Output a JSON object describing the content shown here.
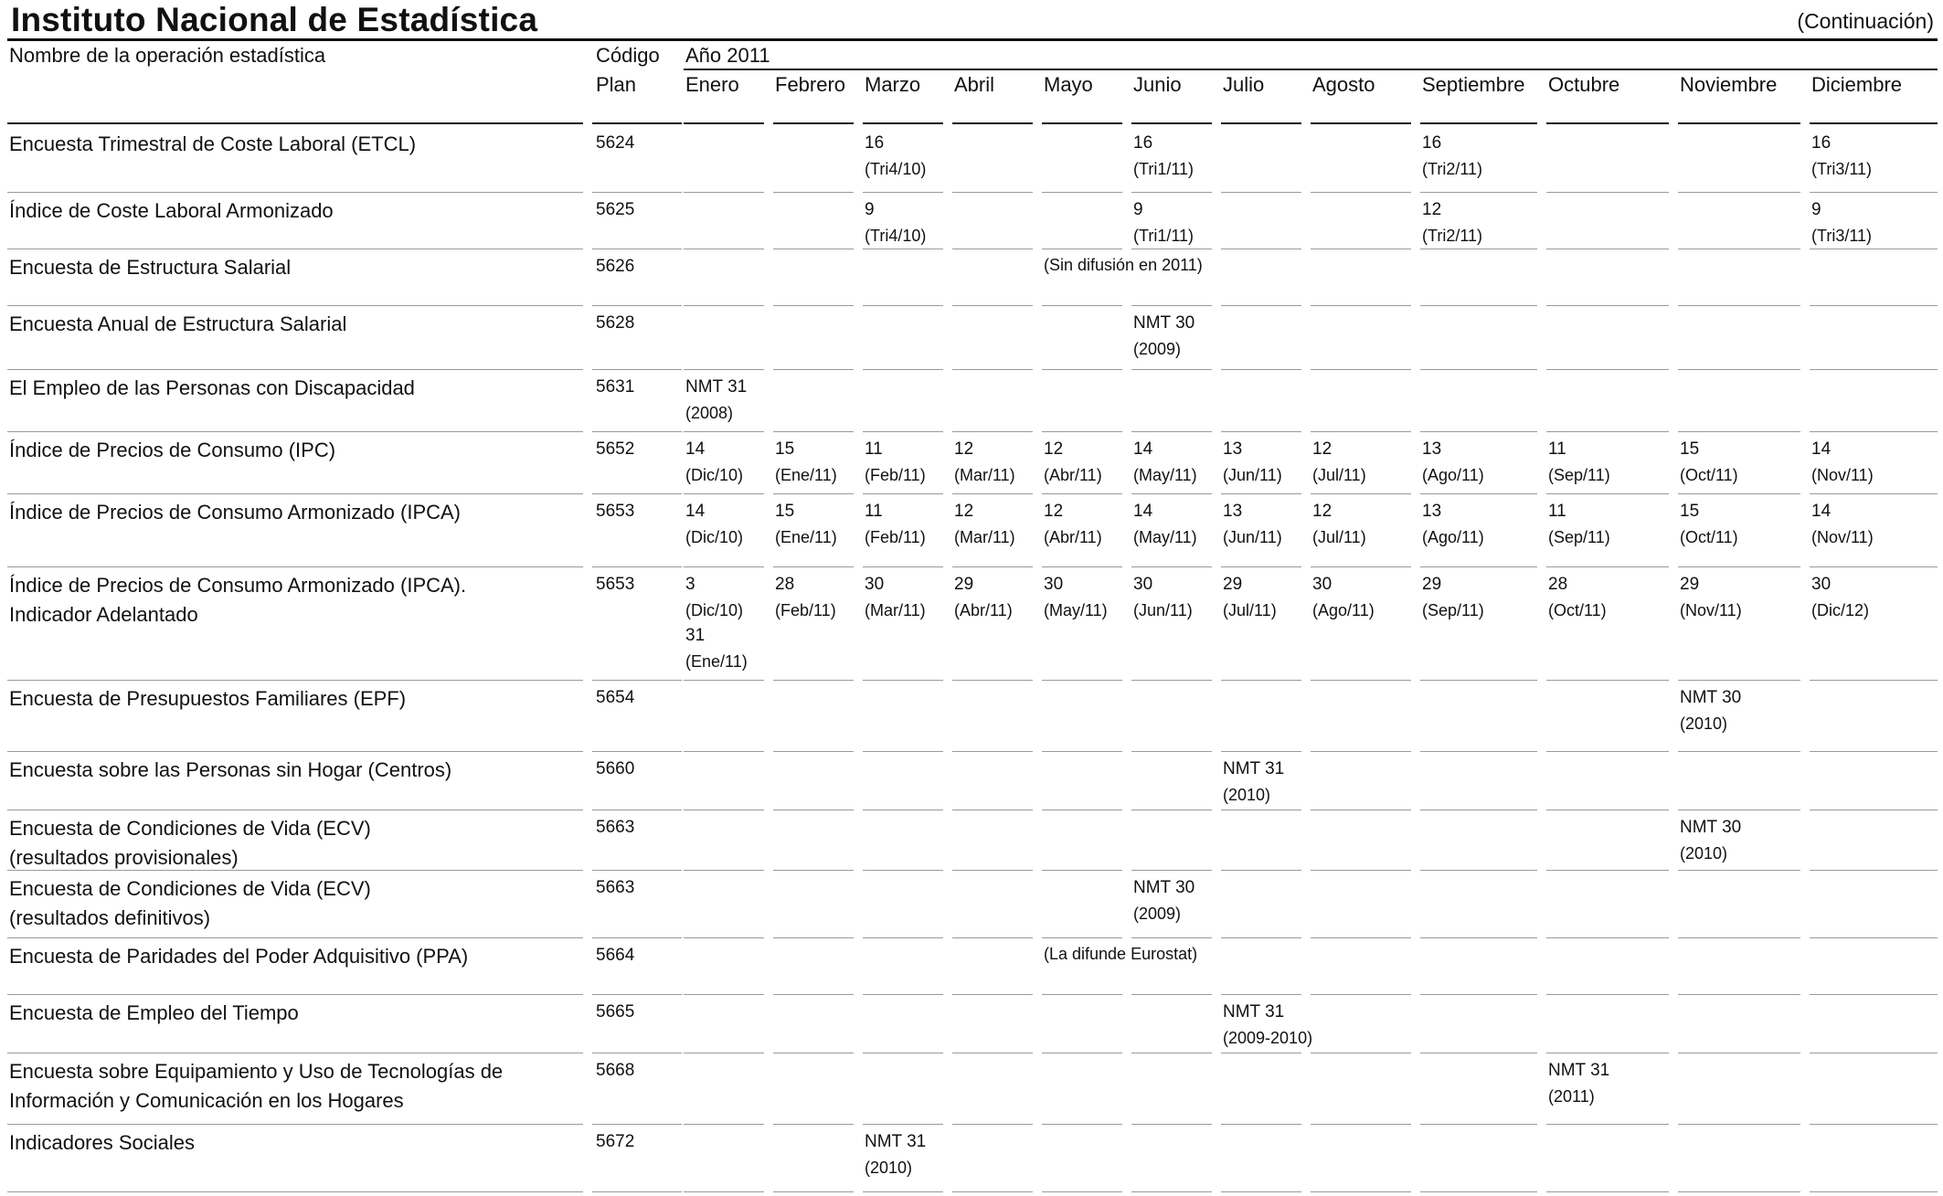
{
  "header": {
    "title": "Instituto Nacional de Estadística",
    "continuation": "(Continuación)"
  },
  "table": {
    "col_name": "Nombre de la operación estadística",
    "col_code_line1": "Código",
    "col_code_line2": "Plan",
    "year_label": "Año 2011",
    "months": [
      "Enero",
      "Febrero",
      "Marzo",
      "Abril",
      "Mayo",
      "Junio",
      "Julio",
      "Agosto",
      "Septiembre",
      "Octubre",
      "Noviembre",
      "Diciembre"
    ],
    "rows": [
      {
        "name": [
          "Encuesta Trimestral de Coste Laboral (ETCL)"
        ],
        "code": "5624",
        "cells": {
          "2": [
            "16",
            "(Tri4/10)"
          ],
          "5": [
            "16",
            "(Tri1/11)"
          ],
          "8": [
            "16",
            "(Tri2/11)"
          ],
          "11": [
            "16",
            "(Tri3/11)"
          ]
        }
      },
      {
        "name": [
          "Índice de Coste Laboral Armonizado"
        ],
        "code": "5625",
        "cells": {
          "2": [
            "9",
            "(Tri4/10)"
          ],
          "5": [
            "9",
            "(Tri1/11)"
          ],
          "8": [
            "12",
            "(Tri2/11)"
          ],
          "11": [
            "9",
            "(Tri3/11)"
          ]
        }
      },
      {
        "name": [
          "Encuesta de Estructura Salarial"
        ],
        "code": "5626",
        "note": "(Sin difusión en 2011)"
      },
      {
        "name": [
          "Encuesta Anual de Estructura Salarial"
        ],
        "code": "5628",
        "cells": {
          "5": [
            "NMT 30",
            "(2009)"
          ]
        }
      },
      {
        "name": [
          "El Empleo de las Personas con Discapacidad"
        ],
        "code": "5631",
        "cells": {
          "0": [
            "NMT 31",
            "(2008)"
          ]
        }
      },
      {
        "name": [
          "Índice de Precios de Consumo (IPC)"
        ],
        "code": "5652",
        "cells": {
          "0": [
            "14",
            "(Dic/10)"
          ],
          "1": [
            "15",
            "(Ene/11)"
          ],
          "2": [
            "11",
            "(Feb/11)"
          ],
          "3": [
            "12",
            "(Mar/11)"
          ],
          "4": [
            "12",
            "(Abr/11)"
          ],
          "5": [
            "14",
            "(May/11)"
          ],
          "6": [
            "13",
            "(Jun/11)"
          ],
          "7": [
            "12",
            "(Jul/11)"
          ],
          "8": [
            "13",
            "(Ago/11)"
          ],
          "9": [
            "11",
            "(Sep/11)"
          ],
          "10": [
            "15",
            "(Oct/11)"
          ],
          "11": [
            "14",
            "(Nov/11)"
          ]
        }
      },
      {
        "name": [
          "Índice de Precios de Consumo Armonizado (IPCA)"
        ],
        "code": "5653",
        "cells": {
          "0": [
            "14",
            "(Dic/10)"
          ],
          "1": [
            "15",
            "(Ene/11)"
          ],
          "2": [
            "11",
            "(Feb/11)"
          ],
          "3": [
            "12",
            "(Mar/11)"
          ],
          "4": [
            "12",
            "(Abr/11)"
          ],
          "5": [
            "14",
            "(May/11)"
          ],
          "6": [
            "13",
            "(Jun/11)"
          ],
          "7": [
            "12",
            "(Jul/11)"
          ],
          "8": [
            "13",
            "(Ago/11)"
          ],
          "9": [
            "11",
            "(Sep/11)"
          ],
          "10": [
            "15",
            "(Oct/11)"
          ],
          "11": [
            "14",
            "(Nov/11)"
          ]
        }
      },
      {
        "name": [
          "Índice de Precios de Consumo Armonizado (IPCA).",
          "Indicador Adelantado"
        ],
        "code": "5653",
        "cells": {
          "0": [
            "3",
            "(Dic/10)",
            "31",
            "(Ene/11)"
          ],
          "1": [
            "28",
            "(Feb/11)"
          ],
          "2": [
            "30",
            "(Mar/11)"
          ],
          "3": [
            "29",
            "(Abr/11)"
          ],
          "4": [
            "30",
            "(May/11)"
          ],
          "5": [
            "30",
            "(Jun/11)"
          ],
          "6": [
            "29",
            "(Jul/11)"
          ],
          "7": [
            "30",
            "(Ago/11)"
          ],
          "8": [
            "29",
            "(Sep/11)"
          ],
          "9": [
            "28",
            "(Oct/11)"
          ],
          "10": [
            "29",
            "(Nov/11)"
          ],
          "11": [
            "30",
            "(Dic/12)"
          ]
        }
      },
      {
        "name": [
          "Encuesta de Presupuestos Familiares (EPF)"
        ],
        "code": "5654",
        "cells": {
          "10": [
            "NMT 30",
            "(2010)"
          ]
        }
      },
      {
        "name": [
          "Encuesta sobre las Personas sin Hogar (Centros)"
        ],
        "code": "5660",
        "cells": {
          "6": [
            "NMT 31",
            "(2010)"
          ]
        }
      },
      {
        "name": [
          "Encuesta de Condiciones de Vida (ECV)",
          "(resultados provisionales)"
        ],
        "code": "5663",
        "cells": {
          "10": [
            "NMT 30",
            "(2010)"
          ]
        }
      },
      {
        "name": [
          "Encuesta de Condiciones de Vida (ECV)",
          "(resultados definitivos)"
        ],
        "code": "5663",
        "cells": {
          "5": [
            "NMT 30",
            "(2009)"
          ]
        }
      },
      {
        "name": [
          "Encuesta de Paridades del Poder Adquisitivo (PPA)"
        ],
        "code": "5664",
        "note": "(La difunde Eurostat)"
      },
      {
        "name": [
          "Encuesta de Empleo del Tiempo"
        ],
        "code": "5665",
        "cells": {
          "6": [
            "NMT 31",
            "(2009-2010)"
          ]
        }
      },
      {
        "name": [
          "Encuesta sobre Equipamiento y Uso de Tecnologías de",
          "Información y Comunicación en los Hogares"
        ],
        "code": "5668",
        "cells": {
          "9": [
            "NMT 31",
            "(2011)"
          ]
        }
      },
      {
        "name": [
          "Indicadores Sociales"
        ],
        "code": "5672",
        "cells": {
          "2": [
            "NMT 31",
            "(2010)"
          ]
        }
      }
    ]
  }
}
